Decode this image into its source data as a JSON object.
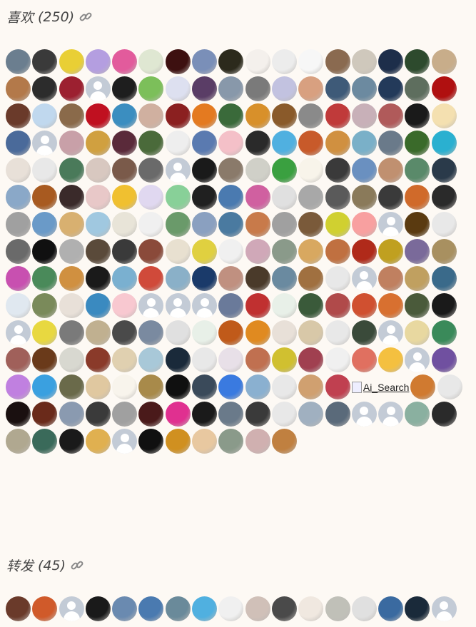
{
  "likes": {
    "label": "喜欢",
    "count": "(250)",
    "icon": "link-icon",
    "broken_image_alt": "Ai_Search",
    "avatars": [
      "#6b7e8f",
      "#3a3a3a",
      "#e9cf35",
      "#b49ee0",
      "#e25b9c",
      "#dfe7d2",
      "#3d1010",
      "#7a8fb8",
      "#2c2a1c",
      "#f4f0ec",
      "#ececec",
      "#f7f7f7",
      "#8a6a50",
      "#cfc8bc",
      "#1d2e4a",
      "#2d4a2d",
      "#c8ad8a",
      "#b3794a",
      "#2c2c2c",
      "#9c2030",
      "ph",
      "#1e1e1e",
      "#7cbf5a",
      "#dde0f0",
      "#5a3d66",
      "#8898aa",
      "#7a7a7a",
      "#c2c2e0",
      "#d8a080",
      "#3e5a78",
      "#6c8aa0",
      "#233a5a",
      "#5e6e5e",
      "#b01010",
      "#6a3a2a",
      "#c0d8ee",
      "#8a6a4a",
      "#c01020",
      "#3b8ec0",
      "#d0b0a0",
      "#8b2020",
      "#e47a20",
      "#3a6a3a",
      "#d8902a",
      "#8a5a2a",
      "#8a8a8a",
      "#c03a3a",
      "#c8b0b8",
      "#b05a5a",
      "#1a1a1a",
      "#f4e0b0",
      "#4a6a9a",
      "ph",
      "#c8a0a8",
      "#d0a040",
      "#5a2a3a",
      "#4a6a3a",
      "#eeeeee",
      "#5a7ab0",
      "#f4c0c8",
      "#2a2a2a",
      "#50b0e0",
      "#c85a2a",
      "#d09040",
      "#7ab0c8",
      "#6a7a8a",
      "#3a6a2a",
      "#2ab0d0",
      "#e8e0d8",
      "#e8e8e8",
      "#4a7a5a",
      "#d8c8c0",
      "#7a5a4a",
      "#6a6a6a",
      "ph",
      "#1a1a1a",
      "#8a7a6a",
      "#d0d0c8",
      "#3aa040",
      "#f8f4ea",
      "#3a3a3a",
      "#6a90c0",
      "#c09070",
      "#5a8a6a",
      "#2a3a4a",
      "#8aa8c8",
      "#a85a20",
      "#3a2a2a",
      "#e8c8c8",
      "#f0c030",
      "#e0d8f0",
      "#88d098",
      "#202020",
      "#4a7ab0",
      "#d060a0",
      "#e0e0e0",
      "#a8a8a8",
      "#5a5a5a",
      "#8a7a5a",
      "#3a3a3a",
      "#d06a2a",
      "#2a2a2a",
      "#a0a0a0",
      "#6a9ac8",
      "#d8b070",
      "#a0c8e0",
      "#e8e4d8",
      "#f0f0f0",
      "#6a9a6a",
      "#8aa0c0",
      "#4a7aa0",
      "#c87a4a",
      "#a0a0a0",
      "#7a5a3a",
      "#d0d030",
      "#f8a0a0",
      "ph",
      "#5a3a10",
      "#e8e8e8",
      "#6a6a6a",
      "#101010",
      "#b0b0b0",
      "#5a4a3a",
      "#3a3a3a",
      "#8a4a3a",
      "#e8e0d0",
      "#e0d040",
      "#f0f0f0",
      "#d0a8b8",
      "#8a9a8a",
      "#d8a860",
      "#c07040",
      "#b02a1a",
      "#c0a020",
      "#7a6a9a",
      "#a89060",
      "#c850b0",
      "#4a8a5a",
      "#d09040",
      "#1a1a1a",
      "#7ab0d0",
      "#d04a3a",
      "#8ab0c8",
      "#1a3a6a",
      "#c09080",
      "#4a3a2a",
      "#6a8aa0",
      "#a07040",
      "#e8e8e8",
      "ph",
      "#c08060",
      "#c0a060",
      "#3a6a8a",
      "#e0e8f0",
      "#7a8a5a",
      "#e8e0d8",
      "#3a8ac0",
      "#f8c8d0",
      "ph",
      "ph",
      "ph",
      "#6a7a9a",
      "#c03030",
      "#e8f0e8",
      "#3a5a3a",
      "#b04a4a",
      "#d05030",
      "#d87030",
      "#4a5a3a",
      "#1a1a1a",
      "ph",
      "#e8d840",
      "#7a7a7a",
      "#c0b090",
      "#4a4a4a",
      "#7a8aa0",
      "#e0e0e0",
      "#e8f0e8",
      "#c05a1a",
      "#e08a20",
      "#e8e0d8",
      "#d8c8a8",
      "#e8e8e8",
      "#3a4a3a",
      "ph",
      "#e8d8a0",
      "#3a8a5a",
      "#a0605a",
      "#6a3a1a",
      "#d8d8d0",
      "#8a3a2a",
      "#e0d0b0",
      "#a8c8d8",
      "#1a2a3a",
      "#e8e8e8",
      "#e8e0e8",
      "#c07050",
      "#d0c030",
      "#a04050",
      "#f0f0f0",
      "#e07060",
      "#f4c040",
      "ph",
      "#7050a0",
      "#c080e0",
      "#3aa0e0",
      "#6a6a4a",
      "#e0c8a0",
      "#f8f4ec",
      "#a88a4a",
      "#101010",
      "#3a4a5a",
      "#3a7ae0",
      "#8ab0d0",
      "#e8e8e8",
      "#d0a070",
      "#c04050",
      "__broken__",
      "#d07a30",
      "#e8e8e8",
      "#1a1010",
      "#6a2a1a",
      "#8a9ab0",
      "#3a3a3a",
      "#a0a0a0",
      "#4a1a1a",
      "#e03090",
      "#1a1a1a",
      "#6a7a8a",
      "#3a3a3a",
      "#e8e8e8",
      "#a0b0c0",
      "#5a6a7a",
      "ph",
      "ph",
      "#8ab0a0",
      "#2a2a2a",
      "#b0a890",
      "#3a6a5a",
      "#1a1a1a",
      "#e0b050",
      "ph",
      "#101010",
      "#d09020",
      "#e8c8a0",
      "#8a9a8a",
      "#d0b0b0",
      "#c08040"
    ]
  },
  "reposts": {
    "label": "转发",
    "count": "(45)",
    "icon": "link-icon",
    "avatars": [
      "#6a3a2a",
      "#d05a2a",
      "ph",
      "#1a1a1a",
      "#6a8ab0",
      "#4a7ab0",
      "#6a8a9a",
      "#50b0e0",
      "#f0f0f0",
      "#d0c0b8",
      "#4a4a4a",
      "#f0e8e0",
      "#c0c0b8",
      "#e0e0e0",
      "#3a6aa0",
      "#1a2a3a",
      "ph"
    ]
  },
  "colors": {
    "background": "#fdf9f4",
    "placeholder": "#c3cbd6"
  }
}
